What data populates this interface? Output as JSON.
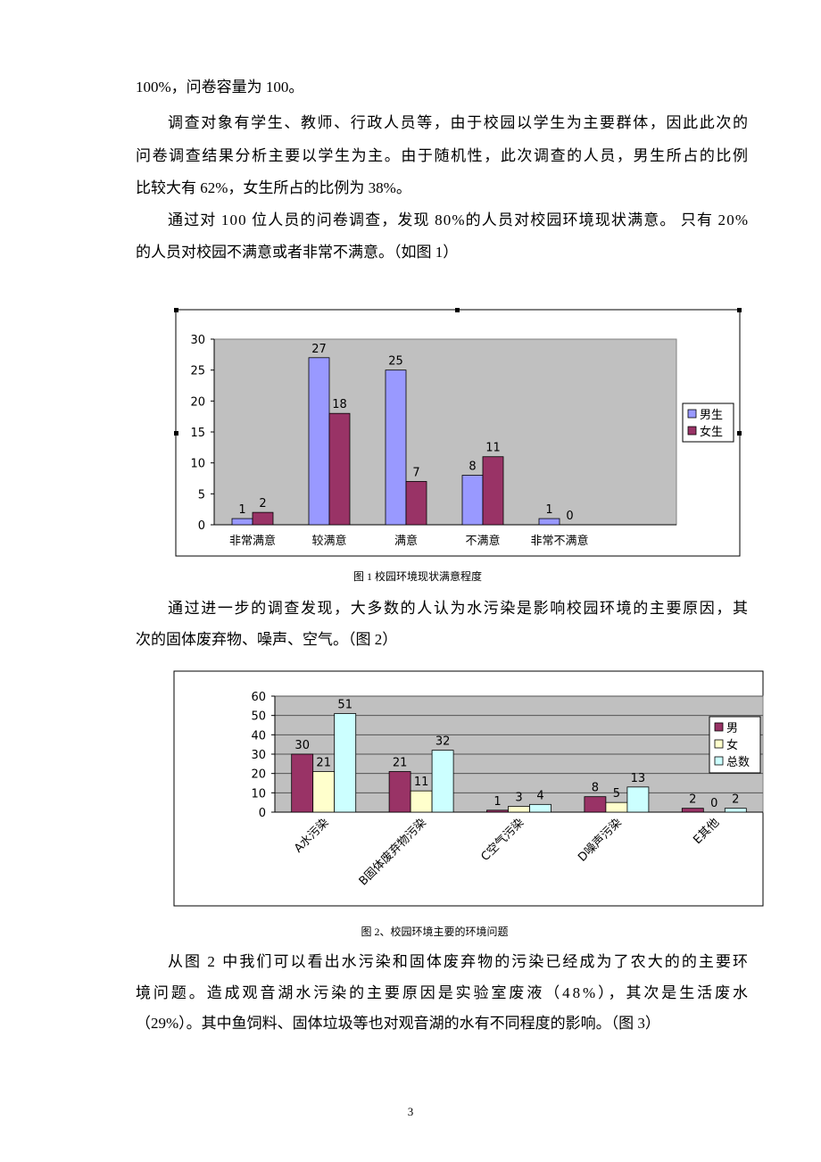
{
  "paragraphs": [
    {
      "lines": [
        "100%，问卷容量为 100。"
      ]
    },
    {
      "lines": [
        "调查对象有学生、教师、行政人员等，由于校园以学生为主要群体，因此此次的",
        "问卷调查结果分析主要以学生为主。由于随机性，此次调查的人员，男生所占的比例",
        "比较大有 62%，女生所占的比例为 38%。"
      ]
    },
    {
      "lines": [
        "通过对 100 位人员的问卷调查，发现 80%的人员对校园环境现状满意。 只有 20%",
        "的人员对校园不满意或者非常不满意。（如图 1）"
      ]
    },
    {
      "lines": [
        "通过进一步的调查发现，大多数的人认为水污染是影响校园环境的主要原因，其",
        "次的固体废弃物、噪声、空气。（图 2）"
      ]
    },
    {
      "lines": [
        "从图 2 中我们可以看出水污染和固体废弃物的污染已经成为了农大的的主要环",
        "境问题。造成观音湖水污染的主要原因是实验室废液（48%），其次是生活废水",
        "（29%）。其中鱼饲料、固体垃圾等也对观音湖的水有不同程度的影响。（图 3）"
      ]
    }
  ],
  "chart_data": [
    {
      "type": "bar",
      "caption": "图 1 校园环境现状满意程度",
      "categories": [
        "非常满意",
        "较满意",
        "满意",
        "不满意",
        "非常不满意"
      ],
      "series": [
        {
          "name": "男生",
          "color": "#9999ff",
          "values": [
            1,
            27,
            25,
            8,
            1
          ]
        },
        {
          "name": "女生",
          "color": "#993366",
          "values": [
            2,
            18,
            7,
            11,
            0
          ]
        }
      ],
      "ylim": [
        0,
        30
      ],
      "yticks": [
        0,
        5,
        10,
        15,
        20,
        25,
        30
      ],
      "grid": false,
      "legend": "right",
      "data_labels": true,
      "rotate_labels": false
    },
    {
      "type": "bar",
      "caption": "图 2、校园环境主要的环境问题",
      "categories": [
        "A水污染",
        "B固体废弃物污染",
        "C空气污染",
        "D噪声污染",
        "E其他"
      ],
      "series": [
        {
          "name": "男",
          "color": "#993366",
          "values": [
            30,
            21,
            1,
            8,
            2
          ]
        },
        {
          "name": "女",
          "color": "#ffffcc",
          "values": [
            21,
            11,
            3,
            5,
            0
          ]
        },
        {
          "name": "总数",
          "color": "#ccffff",
          "values": [
            51,
            32,
            4,
            13,
            2
          ]
        }
      ],
      "ylim": [
        0,
        60
      ],
      "yticks": [
        0,
        10,
        20,
        30,
        40,
        50,
        60
      ],
      "grid": true,
      "legend": "right",
      "data_labels": true,
      "rotate_labels": true
    }
  ],
  "page_number": "3"
}
